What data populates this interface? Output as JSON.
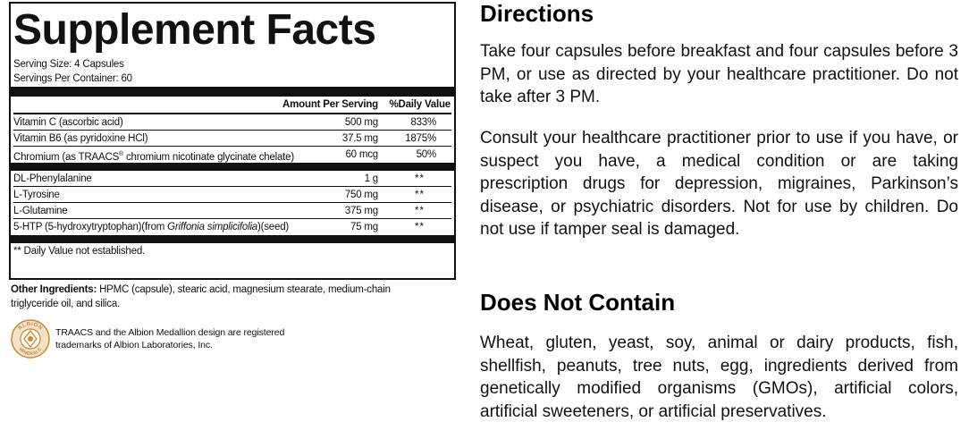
{
  "facts": {
    "title": "Supplement Facts",
    "serving_size": "Serving Size: 4 Capsules",
    "servings_per_container": "Servings Per Container: 60",
    "col_amount": "Amount Per Serving",
    "col_dv": "%Daily Value",
    "group1": [
      {
        "name": "Vitamin C (ascorbic acid)",
        "amount": "500 mg",
        "dv": "833%"
      },
      {
        "name": "Vitamin B6 (as pyridoxine HCl)",
        "amount": "37.5 mg",
        "dv": "1875%"
      },
      {
        "name_pre": "Chromium (as TRAACS",
        "name_reg": "®",
        "name_post": " chromium nicotinate glycinate chelate)",
        "amount": "60 mcg",
        "dv": "50%"
      }
    ],
    "group2": [
      {
        "name": "DL-Phenylalanine",
        "amount": "1 g",
        "dv": "**"
      },
      {
        "name": "L-Tyrosine",
        "amount": "750 mg",
        "dv": "**"
      },
      {
        "name": "L-Glutamine",
        "amount": "375 mg",
        "dv": "**"
      }
    ],
    "htp": {
      "name_pre": "5-HTP (5-hydroxytryptophan)(from ",
      "name_italic": "Griffonia simplicifolia",
      "name_post": ")(seed)",
      "amount": "75 mg",
      "dv": "**"
    },
    "footnote": "** Daily Value not established."
  },
  "other": {
    "label": "Other Ingredients:",
    "text": " HPMC (capsule), stearic acid, magnesium stearate, medium-chain triglyceride oil, and silica."
  },
  "albion": {
    "logo_top": "ALBION",
    "logo_bottom": "MINERALS",
    "trademark": "TRAACS and the Albion Medallion design are registered trademarks of Albion Laboratories, Inc.",
    "color": "#c8893a"
  },
  "directions": {
    "title": "Directions",
    "p1": "Take four capsules before breakfast and four capsules before 3 PM, or use as directed by your healthcare practitioner. Do not take after 3 PM.",
    "p2": "Consult your healthcare practitioner prior to use if you have, or suspect you have, a medical condition or are taking prescription drugs for depression,  migraines, Parkinson’s disease, or psychiatric disorders. Not for use by children. Do not use if tamper seal is damaged."
  },
  "does_not_contain": {
    "title": "Does Not Contain",
    "text": "Wheat, gluten, yeast, soy, animal or dairy products, fish, shellfish, peanuts, tree nuts, egg, ingredients derived from genetically modified organisms (GMOs), artificial colors, artificial sweeteners, or artificial preservatives."
  }
}
